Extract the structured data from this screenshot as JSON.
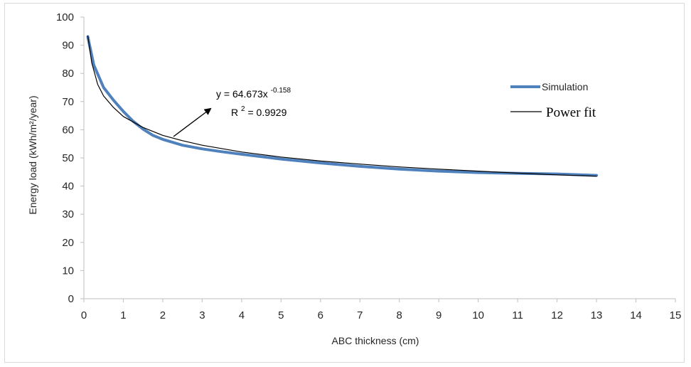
{
  "chart_data": {
    "type": "line",
    "xlabel": "ABC thickness (cm)",
    "ylabel": "Energy load (kWh/m²/year)",
    "xlim": [
      0,
      15
    ],
    "ylim": [
      0,
      100
    ],
    "xticks": [
      "0",
      "1",
      "2",
      "3",
      "4",
      "5",
      "6",
      "7",
      "8",
      "9",
      "10",
      "11",
      "12",
      "13",
      "14",
      "15"
    ],
    "yticks": [
      "0",
      "10",
      "20",
      "30",
      "40",
      "50",
      "60",
      "70",
      "80",
      "90",
      "100"
    ],
    "grid": false,
    "legend_position": "right",
    "series": [
      {
        "name": "Simulation",
        "color": "#4f81bd",
        "x": [
          0.1,
          0.25,
          0.5,
          0.75,
          1,
          1.25,
          1.5,
          1.75,
          2,
          2.5,
          3,
          3.5,
          4,
          5,
          6,
          7,
          8,
          9,
          10,
          11,
          12,
          13
        ],
        "y": [
          93.0,
          83.0,
          75.0,
          70.5,
          66.5,
          63.0,
          60.2,
          58.0,
          56.6,
          54.5,
          53.2,
          52.2,
          51.3,
          49.6,
          48.2,
          47.0,
          46.0,
          45.3,
          44.8,
          44.5,
          44.3,
          43.8
        ]
      },
      {
        "name": "Power fit",
        "color": "#000000",
        "x": [
          0.1,
          0.2,
          0.35,
          0.5,
          0.75,
          1,
          1.5,
          2,
          2.5,
          3,
          4,
          5,
          6,
          7,
          8,
          9,
          10,
          11,
          12,
          13
        ],
        "y": [
          93.3,
          83.7,
          76.1,
          72.0,
          67.9,
          64.7,
          60.8,
          58.0,
          56.1,
          54.5,
          52.1,
          50.3,
          48.9,
          47.8,
          46.8,
          46.0,
          45.3,
          44.6,
          44.0,
          43.5
        ]
      }
    ],
    "annotation": {
      "equation_prefix": "y = 64.673x",
      "equation_exponent": "-0.158",
      "r2_prefix": "R",
      "r2_sup": "2",
      "r2_value": " = 0.9929"
    }
  }
}
